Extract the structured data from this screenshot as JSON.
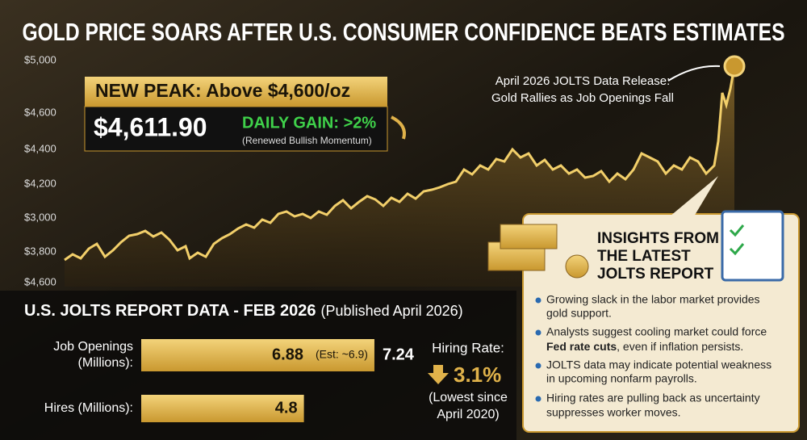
{
  "header": {
    "title": "GOLD PRICE SOARS AFTER U.S. CONSUMER CONFIDENCE BEATS ESTIMATES"
  },
  "chart": {
    "axis_labels": [
      "$5,000",
      "$4,600",
      "$4,400",
      "$4,200",
      "$3,000",
      "$3,800",
      "$4,600"
    ],
    "callout": {
      "heading": "NEW PEAK: Above $4,600/oz",
      "price": "$4,611.90",
      "gain": "DAILY GAIN: >2%",
      "gain_note": "(Renewed Bullish Momentum)"
    },
    "annotation": [
      "April 2026 JOLTS Data Release:",
      "Gold Rallies as Job Openings Fall"
    ]
  },
  "jolts": {
    "title": "U.S. JOLTS REPORT DATA - FEB 2026",
    "subtitle": "(Published April 2026)",
    "rows": [
      {
        "label": [
          "Job Openings",
          "(Millions):"
        ],
        "value": 6.88,
        "estimate": "(Est: ~6.9)",
        "prior": 7.24
      },
      {
        "label": [
          "Hires (Millions):"
        ],
        "value": 4.8
      }
    ],
    "hiring": {
      "label": "Hiring Rate:",
      "value": "3.1%",
      "note": [
        "(Lowest since",
        "April 2020)"
      ]
    }
  },
  "insights": {
    "title": [
      "INSIGHTS FROM",
      "THE LATEST",
      "JOLTS REPORT"
    ],
    "bullets": [
      [
        "Growing slack in the labor market provides",
        "gold support."
      ],
      [
        "Analysts suggest cooling market could force",
        "Fed rate cuts",
        ", even if inflation persists."
      ],
      [
        "JOLTS data may indicate potential weakness",
        "in upcoming nonfarm payrolls."
      ],
      [
        "Hiring rates are pulling back as uncertainty",
        "suppresses worker moves."
      ]
    ]
  }
}
